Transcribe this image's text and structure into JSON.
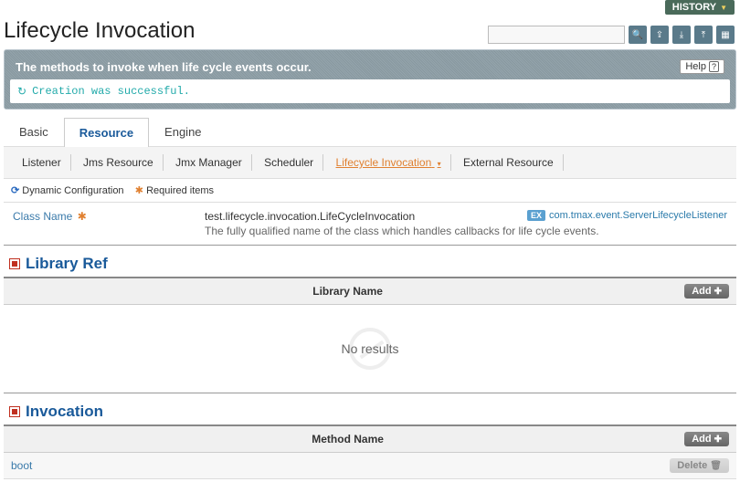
{
  "history_label": "HISTORY",
  "page_title": "Lifecycle Invocation",
  "search": {
    "placeholder": ""
  },
  "description": "The methods to invoke when life cycle events occur.",
  "help_label": "Help",
  "success_message": "Creation was successful.",
  "main_tabs": {
    "basic": "Basic",
    "resource": "Resource",
    "engine": "Engine"
  },
  "active_main_tab": "resource",
  "sub_tabs": {
    "listener": "Listener",
    "jms_resource": "Jms Resource",
    "jmx_manager": "Jmx Manager",
    "scheduler": "Scheduler",
    "lifecycle_invocation": "Lifecycle Invocation",
    "external_resource": "External Resource"
  },
  "legend": {
    "dynamic": "Dynamic Configuration",
    "required": "Required items"
  },
  "class_name_field": {
    "label": "Class Name",
    "value": "test.lifecycle.invocation.LifeCycleInvocation",
    "desc": "The fully qualified name of the class which handles callbacks for life cycle events.",
    "example_prefix": "EX",
    "example": "com.tmax.event.ServerLifecycleListener"
  },
  "library_ref": {
    "title": "Library Ref",
    "column": "Library Name",
    "add_label": "Add",
    "empty": "No results"
  },
  "invocation": {
    "title": "Invocation",
    "column": "Method Name",
    "add_label": "Add",
    "delete_label": "Delete",
    "rows": [
      {
        "method": "boot"
      }
    ]
  },
  "colors": {
    "accent_blue": "#1a5a9a",
    "accent_orange": "#e08030",
    "link_blue": "#3a7aaa",
    "success": "#22aaaa",
    "panel_bg": "#8c9ca4"
  }
}
